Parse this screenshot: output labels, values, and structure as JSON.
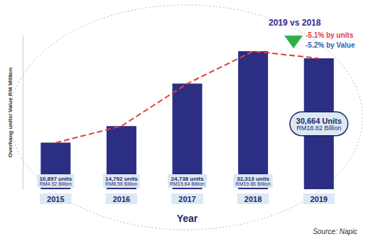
{
  "chart_data": {
    "type": "bar",
    "ylabel": "Overhang units/ Value RM Million",
    "xlabel": "Year",
    "categories": [
      "2015",
      "2016",
      "2017",
      "2018",
      "2019"
    ],
    "ylim": [
      0,
      36000
    ],
    "yticks": [
      0,
      36000
    ],
    "tick_labels": "x",
    "grid": false,
    "series": [
      {
        "type": "bar",
        "color": "#2b2e83",
        "values": [
          10897,
          14792,
          24738,
          32313,
          30664
        ],
        "data_labels": true,
        "value_labels": [
          "10,897 units",
          "14,792 units",
          "24,738 units",
          "32,313 units",
          "30,664 Units"
        ],
        "secondary_labels": [
          "RM4.92 Billion",
          "RM8.56 Billion",
          "RM15.64 Billion",
          "RM19.86 Billion",
          "RM18.82 Billion"
        ]
      },
      {
        "type": "line",
        "color": "#e0403a",
        "line_style": "dashed",
        "values": [
          10897,
          14792,
          24738,
          32313,
          30664
        ]
      }
    ],
    "annotations": [
      "2019 vs 2018",
      "-5.1% by units",
      "-5.2% by Value"
    ],
    "source": "Source: Napic"
  }
}
